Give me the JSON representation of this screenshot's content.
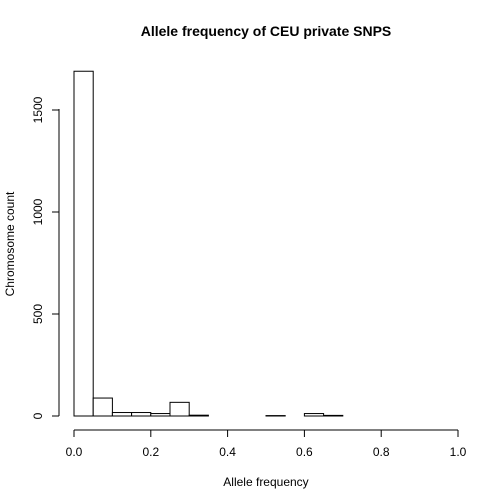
{
  "chart_data": {
    "type": "bar",
    "title": "Allele frequency of CEU private SNPS",
    "xlabel": "Allele frequency",
    "ylabel": "Chromosome count",
    "xlim": [
      0,
      1
    ],
    "ylim": [
      0,
      1700
    ],
    "xticks": [
      "0.0",
      "0.2",
      "0.4",
      "0.6",
      "0.8",
      "1.0"
    ],
    "yticks": [
      "0",
      "500",
      "1000",
      "1500"
    ],
    "bin_width": 0.05,
    "bins": [
      {
        "x0": 0.0,
        "value": 1690
      },
      {
        "x0": 0.05,
        "value": 88
      },
      {
        "x0": 0.1,
        "value": 17
      },
      {
        "x0": 0.15,
        "value": 17
      },
      {
        "x0": 0.2,
        "value": 12
      },
      {
        "x0": 0.25,
        "value": 67
      },
      {
        "x0": 0.3,
        "value": 4
      },
      {
        "x0": 0.35,
        "value": 0
      },
      {
        "x0": 0.4,
        "value": 0
      },
      {
        "x0": 0.45,
        "value": 0
      },
      {
        "x0": 0.5,
        "value": 2
      },
      {
        "x0": 0.55,
        "value": 0
      },
      {
        "x0": 0.6,
        "value": 12
      },
      {
        "x0": 0.65,
        "value": 3
      },
      {
        "x0": 0.7,
        "value": 0
      },
      {
        "x0": 0.75,
        "value": 0
      },
      {
        "x0": 0.8,
        "value": 0
      },
      {
        "x0": 0.85,
        "value": 0
      },
      {
        "x0": 0.9,
        "value": 0
      },
      {
        "x0": 0.95,
        "value": 0
      }
    ],
    "grid": false,
    "legend": "none"
  }
}
